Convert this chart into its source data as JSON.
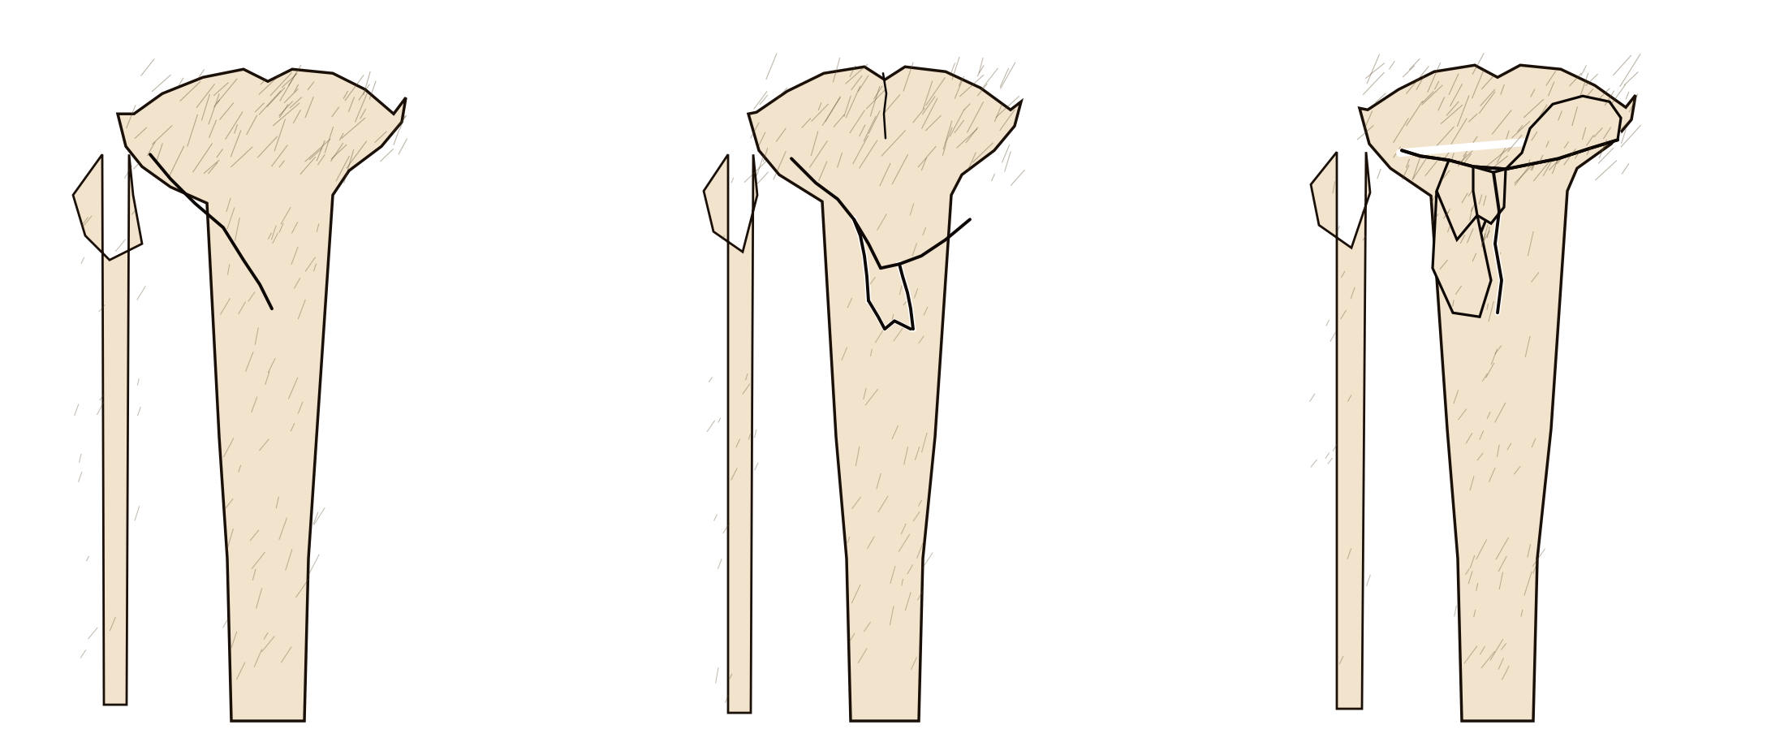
{
  "figure_width": 21.77,
  "figure_height": 9.25,
  "dpi": 100,
  "background_color": "#ffffff",
  "bone_color": "#f2e4cc",
  "bone_shadow": "#ddd0b0",
  "outline_color": "#1a1008",
  "fracture_color": "#0d0805",
  "hatch_color": "#5a4828",
  "white_gap": "#ffffff"
}
